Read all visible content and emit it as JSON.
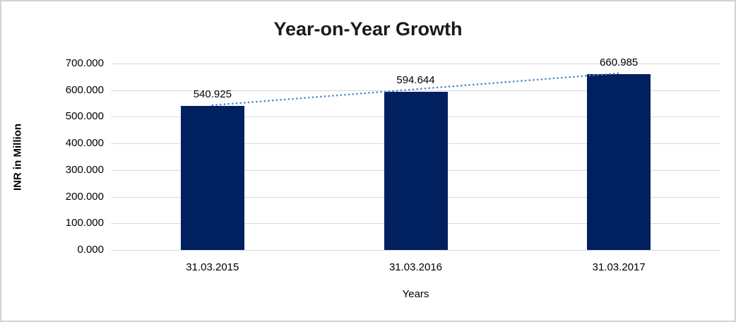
{
  "chart_data": {
    "type": "bar",
    "title": "Year-on-Year Growth",
    "xlabel": "Years",
    "ylabel": "INR in Million",
    "categories": [
      "31.03.2015",
      "31.03.2016",
      "31.03.2017"
    ],
    "values": [
      540.925,
      594.644,
      660.985
    ],
    "value_labels": [
      "540.925",
      "594.644",
      "660.985"
    ],
    "ytick_labels": [
      "700.000",
      "600.000",
      "500.000",
      "400.000",
      "300.000",
      "200.000",
      "100.000",
      "0.000"
    ],
    "ylim": [
      0,
      700
    ],
    "grid": true,
    "legend": false,
    "series_color": "#002060",
    "trendline": {
      "style": "dotted",
      "color": "#4e86ca",
      "from_category": "31.03.2015",
      "to_category": "31.03.2017"
    },
    "gridline_color": "#d9d9d9"
  }
}
